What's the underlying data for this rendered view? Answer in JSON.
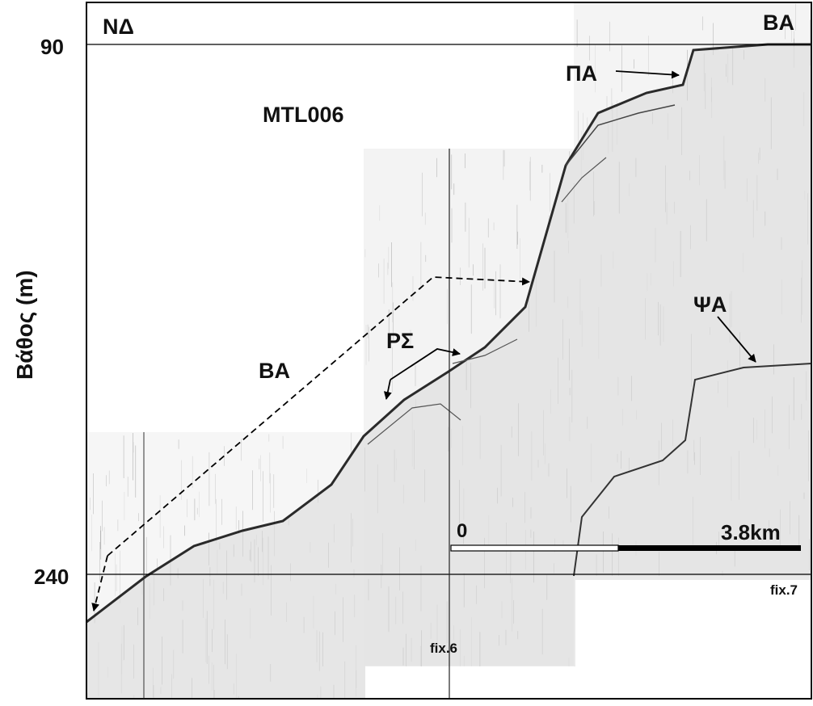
{
  "profile_name": "MTL006",
  "orientation": {
    "left": "ΝΔ",
    "right": "ΒΑ"
  },
  "y_axis": {
    "label": "Βάθος (m)",
    "ticks": [
      "90",
      "240"
    ]
  },
  "fix_marks": [
    "fix.6",
    "fix.7"
  ],
  "annotations": {
    "pa": "ΠΑ",
    "psa": "ΨΑ",
    "rs": "ΡΣ",
    "ba": "ΒΑ"
  },
  "scale_bar": {
    "start": "0",
    "end": "3.8km"
  },
  "colors": {
    "frame": "#000000",
    "seabed": "#2a2a2a",
    "noise": "#6a6a6a",
    "paper": "#ffffff",
    "scale_dark": "#000000",
    "scale_light": "#ffffff"
  },
  "icons": [
    "arrow-icon",
    "dashed-arrow-icon"
  ]
}
